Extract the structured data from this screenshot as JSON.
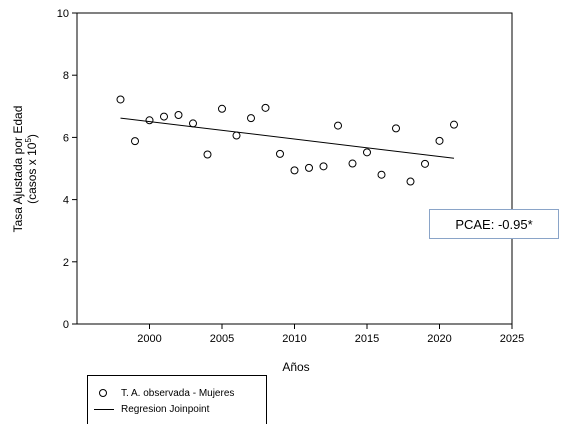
{
  "chart_data": {
    "type": "scatter",
    "xlabel": "Años",
    "ylabel_line1": "Tasa Ajustada por Edad",
    "ylabel_line2_prefix": "(casos x 10",
    "ylabel_line2_sup": "5",
    "ylabel_line2_suffix": ")",
    "xlim": [
      1995,
      2025
    ],
    "ylim": [
      0,
      10
    ],
    "xticks": [
      2000,
      2005,
      2010,
      2015,
      2020,
      2025
    ],
    "yticks": [
      0,
      2,
      4,
      6,
      8,
      10
    ],
    "grid": false,
    "series": [
      {
        "name": "T. A. observada - Mujeres",
        "marker": "open-circle",
        "x": [
          1998,
          1999,
          2000,
          2001,
          2002,
          2003,
          2004,
          2005,
          2006,
          2007,
          2008,
          2009,
          2010,
          2011,
          2012,
          2013,
          2014,
          2015,
          2016,
          2017,
          2018,
          2019,
          2020,
          2021
        ],
        "y": [
          7.22,
          5.88,
          6.55,
          6.67,
          6.72,
          6.45,
          5.45,
          6.92,
          6.06,
          6.62,
          6.95,
          5.47,
          4.94,
          5.02,
          5.07,
          6.38,
          5.16,
          5.52,
          4.8,
          6.29,
          4.58,
          5.15,
          5.89,
          6.41
        ]
      },
      {
        "name": "Regresion Joinpoint",
        "type": "line",
        "x": [
          1998,
          2021
        ],
        "y": [
          6.62,
          5.33
        ]
      }
    ],
    "annotation": "PCAE: -0.95*",
    "legend_position": "bottom-left"
  }
}
